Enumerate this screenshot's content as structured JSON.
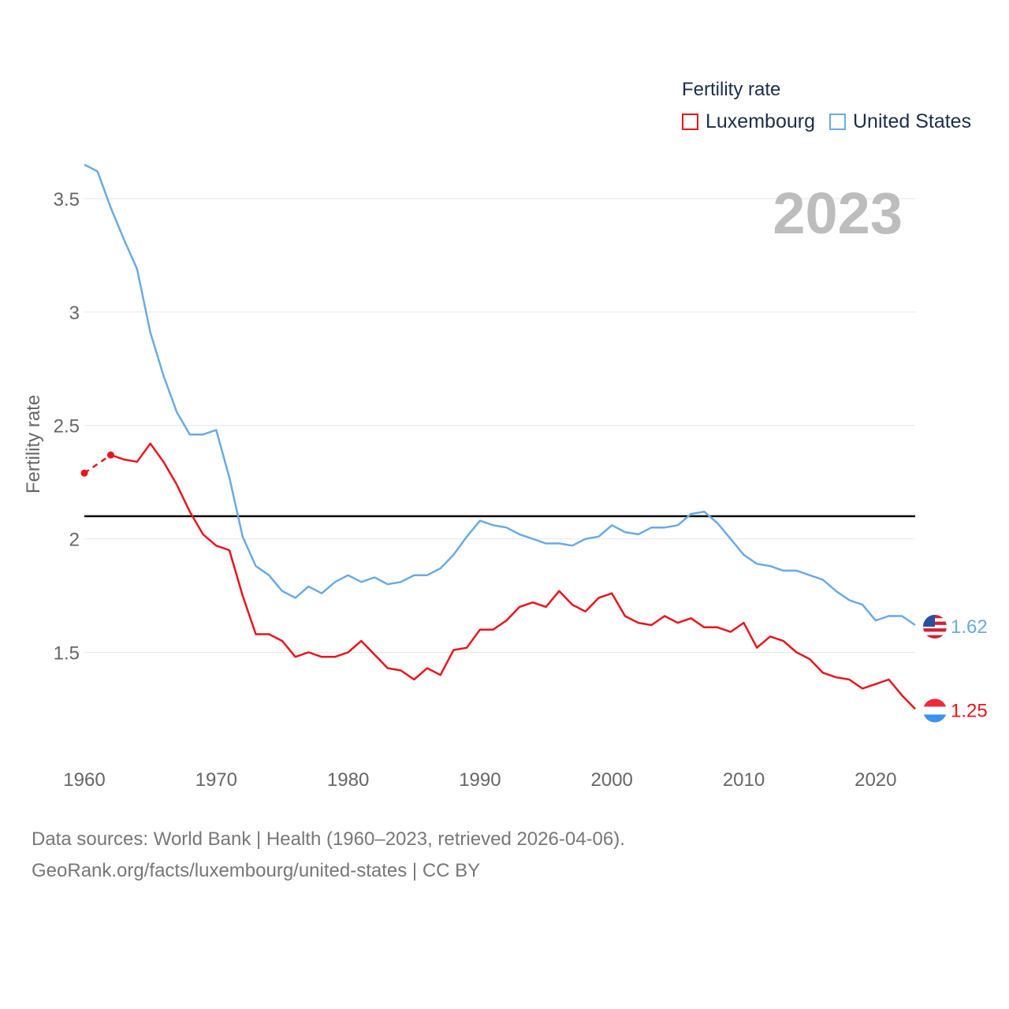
{
  "legend": {
    "title": "Fertility rate",
    "items": [
      {
        "label": "Luxembourg",
        "color": "#e8141c"
      },
      {
        "label": "United States",
        "color": "#6aaae4"
      }
    ]
  },
  "year_label": "2023",
  "source": {
    "line1": "Data sources: World Bank | Health (1960–2023, retrieved 2026-04-06).",
    "line2": "GeoRank.org/facts/luxembourg/united-states | CC BY"
  },
  "chart_data": {
    "type": "line",
    "title": "Fertility rate",
    "xlabel": "",
    "ylabel": "Fertility rate",
    "xlim": [
      1960,
      2023
    ],
    "ylim": [
      1.05,
      3.75
    ],
    "x_ticks": [
      1960,
      1970,
      1980,
      1990,
      2000,
      2010,
      2020
    ],
    "y_ticks": [
      1.5,
      2,
      2.5,
      3,
      3.5
    ],
    "y_tick_labels": [
      "1.5",
      "2",
      "2.5",
      "3",
      "3.5"
    ],
    "grid": true,
    "reference_line": {
      "y": 2.1,
      "color": "#000000"
    },
    "series": [
      {
        "name": "Luxembourg",
        "color": "#e8141c",
        "end_label": "1.25",
        "estimated_points": [
          {
            "x": 1960,
            "y": 2.29
          },
          {
            "x": 1962,
            "y": 2.37
          }
        ],
        "x": [
          1962,
          1963,
          1964,
          1965,
          1966,
          1967,
          1968,
          1969,
          1970,
          1971,
          1972,
          1973,
          1974,
          1975,
          1976,
          1977,
          1978,
          1979,
          1980,
          1981,
          1982,
          1983,
          1984,
          1985,
          1986,
          1987,
          1988,
          1989,
          1990,
          1991,
          1992,
          1993,
          1994,
          1995,
          1996,
          1997,
          1998,
          1999,
          2000,
          2001,
          2002,
          2003,
          2004,
          2005,
          2006,
          2007,
          2008,
          2009,
          2010,
          2011,
          2012,
          2013,
          2014,
          2015,
          2016,
          2017,
          2018,
          2019,
          2020,
          2021,
          2022,
          2023
        ],
        "values": [
          2.37,
          2.35,
          2.34,
          2.42,
          2.34,
          2.24,
          2.12,
          2.02,
          1.97,
          1.95,
          1.75,
          1.58,
          1.58,
          1.55,
          1.48,
          1.5,
          1.48,
          1.48,
          1.5,
          1.55,
          1.49,
          1.43,
          1.42,
          1.38,
          1.43,
          1.4,
          1.51,
          1.52,
          1.6,
          1.6,
          1.64,
          1.7,
          1.72,
          1.7,
          1.77,
          1.71,
          1.68,
          1.74,
          1.76,
          1.66,
          1.63,
          1.62,
          1.66,
          1.63,
          1.65,
          1.61,
          1.61,
          1.59,
          1.63,
          1.52,
          1.57,
          1.55,
          1.5,
          1.47,
          1.41,
          1.39,
          1.38,
          1.34,
          1.36,
          1.38,
          1.31,
          1.25
        ]
      },
      {
        "name": "United States",
        "color": "#6aaae4",
        "end_label": "1.62",
        "x": [
          1960,
          1961,
          1962,
          1963,
          1964,
          1965,
          1966,
          1967,
          1968,
          1969,
          1970,
          1971,
          1972,
          1973,
          1974,
          1975,
          1976,
          1977,
          1978,
          1979,
          1980,
          1981,
          1982,
          1983,
          1984,
          1985,
          1986,
          1987,
          1988,
          1989,
          1990,
          1991,
          1992,
          1993,
          1994,
          1995,
          1996,
          1997,
          1998,
          1999,
          2000,
          2001,
          2002,
          2003,
          2004,
          2005,
          2006,
          2007,
          2008,
          2009,
          2010,
          2011,
          2012,
          2013,
          2014,
          2015,
          2016,
          2017,
          2018,
          2019,
          2020,
          2021,
          2022,
          2023
        ],
        "values": [
          3.65,
          3.62,
          3.46,
          3.32,
          3.19,
          2.91,
          2.72,
          2.56,
          2.46,
          2.46,
          2.48,
          2.27,
          2.01,
          1.88,
          1.84,
          1.77,
          1.74,
          1.79,
          1.76,
          1.81,
          1.84,
          1.81,
          1.83,
          1.8,
          1.81,
          1.84,
          1.84,
          1.87,
          1.93,
          2.01,
          2.08,
          2.06,
          2.05,
          2.02,
          2.0,
          1.98,
          1.98,
          1.97,
          2.0,
          2.01,
          2.06,
          2.03,
          2.02,
          2.05,
          2.05,
          2.06,
          2.11,
          2.12,
          2.07,
          2.0,
          1.93,
          1.89,
          1.88,
          1.86,
          1.86,
          1.84,
          1.82,
          1.77,
          1.73,
          1.71,
          1.64,
          1.66,
          1.66,
          1.62
        ]
      }
    ]
  }
}
